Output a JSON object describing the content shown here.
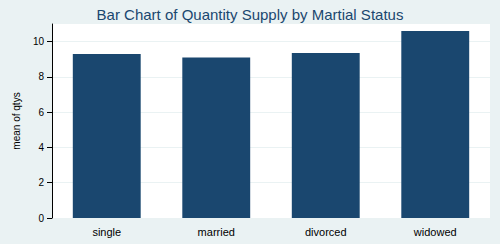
{
  "chart_data": {
    "type": "bar",
    "title": "Bar Chart of Quantity Supply by Martial Status",
    "y_label": "mean of qtys",
    "categories": [
      "single",
      "married",
      "divorced",
      "widowed"
    ],
    "values": [
      9.3,
      9.1,
      9.35,
      10.6
    ],
    "color": "#1a476f",
    "ylim": [
      0,
      11
    ],
    "yticks": [
      0,
      2,
      4,
      6,
      8,
      10
    ],
    "grid": true
  }
}
